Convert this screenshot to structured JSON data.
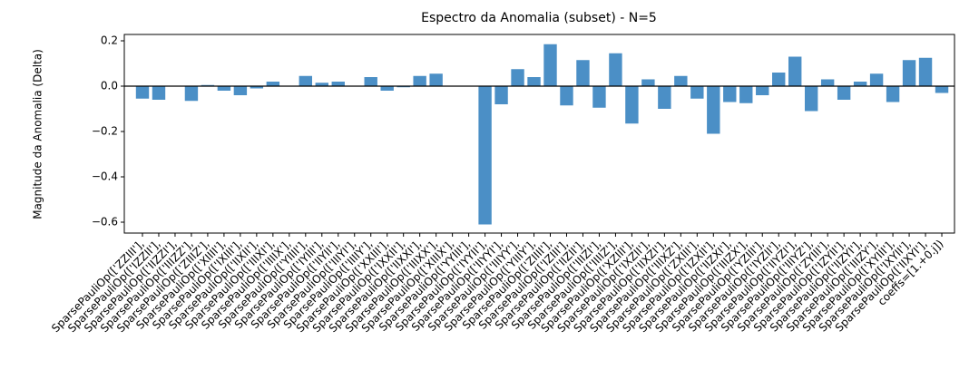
{
  "chart_data": {
    "type": "bar",
    "title": "Espectro da Anomalia (subset) - N=5",
    "y_label": "Magnitude da Anomalia (Delta)",
    "categories": [
      "SparsePauliOp(['ZZIII'],",
      "SparsePauliOp(['IZZII'],",
      "SparsePauliOp(['IIZZI'],",
      "SparsePauliOp(['IIIZZ'],",
      "SparsePauliOp(['ZIIIZ'],",
      "SparsePauliOp(['XIIII'],",
      "SparsePauliOp(['IXIII'],",
      "SparsePauliOp(['IIXII'],",
      "SparsePauliOp(['IIIXI'],",
      "SparsePauliOp(['IIIIX'],",
      "SparsePauliOp(['YIIII'],",
      "SparsePauliOp(['IYIII'],",
      "SparsePauliOp(['IIYII'],",
      "SparsePauliOp(['IIIYI'],",
      "SparsePauliOp(['IIIIY'],",
      "SparsePauliOp(['XXIII'],",
      "SparsePauliOp(['IXXII'],",
      "SparsePauliOp(['IIXXI'],",
      "SparsePauliOp(['IIIXX'],",
      "SparsePauliOp(['XIIIX'],",
      "SparsePauliOp(['YYIII'],",
      "SparsePauliOp(['IYYII'],",
      "SparsePauliOp(['IIYYI'],",
      "SparsePauliOp(['IIIYY'],",
      "SparsePauliOp(['YIIIY'],",
      "SparsePauliOp(['ZIIII'],",
      "SparsePauliOp(['IZIII'],",
      "SparsePauliOp(['IIZII'],",
      "SparsePauliOp(['IIIZI'],",
      "SparsePauliOp(['IIIIZ'],",
      "SparsePauliOp(['XZIII'],",
      "SparsePauliOp(['IXZII'],",
      "SparsePauliOp(['IIXZI'],",
      "SparsePauliOp(['IIIXZ'],",
      "SparsePauliOp(['ZXIII'],",
      "SparsePauliOp(['IZXII'],",
      "SparsePauliOp(['IIZXI'],",
      "SparsePauliOp(['IIIZX'],",
      "SparsePauliOp(['YZIII'],",
      "SparsePauliOp(['IYZII'],",
      "SparsePauliOp(['IIYZI'],",
      "SparsePauliOp(['IIIYZ'],",
      "SparsePauliOp(['ZYIII'],",
      "SparsePauliOp(['IZYII'],",
      "SparsePauliOp(['IIZYI'],",
      "SparsePauliOp(['IIIZY'],",
      "SparsePauliOp(['XYIII'],",
      "SparsePauliOp(['IXYII'],",
      "SparsePauliOp(['IIXYI'],",
      "coeffs=[1.+0.j])"
    ],
    "values": [
      -0.055,
      -0.06,
      0,
      -0.065,
      0.005,
      -0.02,
      -0.04,
      -0.01,
      0.02,
      0,
      0.045,
      0.015,
      0.02,
      0,
      0.04,
      -0.02,
      -0.005,
      0.045,
      0.055,
      0,
      0,
      -0.61,
      -0.08,
      0.075,
      0.04,
      0.185,
      -0.085,
      0.115,
      -0.095,
      0.145,
      -0.165,
      0.03,
      -0.1,
      0.045,
      -0.055,
      -0.21,
      -0.07,
      -0.075,
      -0.04,
      0.06,
      0.13,
      -0.11,
      0.03,
      -0.06,
      0.02,
      0.055,
      -0.07,
      0.115,
      0.125,
      -0.03
    ],
    "color": "#4b8fc6",
    "ylim": [
      -0.648,
      0.228
    ],
    "yticks": [
      0.2,
      {
        "value": 0,
        "label": "0.0"
      },
      {
        "value": -0.2,
        "label": "−0.2"
      },
      {
        "value": -0.4,
        "label": "−0.4"
      },
      {
        "value": -0.6,
        "label": "−0.6"
      }
    ],
    "zero_line": true
  }
}
